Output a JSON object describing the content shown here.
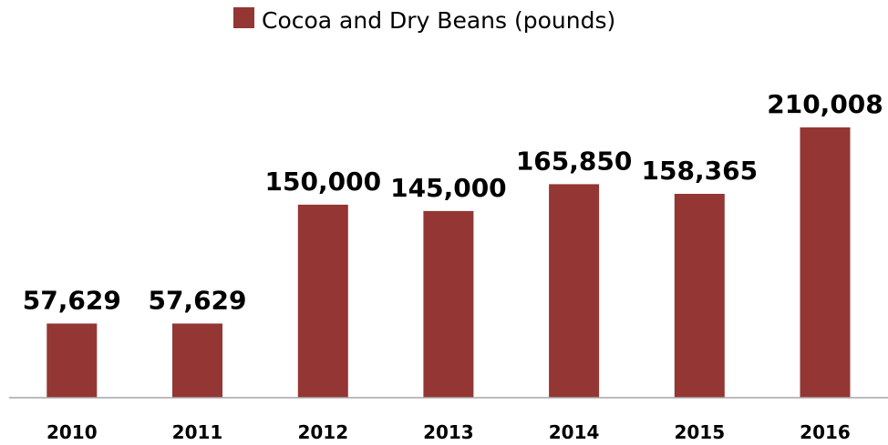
{
  "chart_data": {
    "type": "bar",
    "categories": [
      "2010",
      "2011",
      "2012",
      "2013",
      "2014",
      "2015",
      "2016"
    ],
    "series": [
      {
        "name": "Cocoa and Dry Beans (pounds)",
        "values": [
          57629,
          57629,
          150000,
          145000,
          165850,
          158365,
          210008
        ],
        "data_labels": [
          "57,629",
          "57,629",
          "150,000",
          "145,000",
          "165,850",
          "158,365",
          "210,008"
        ]
      }
    ],
    "title": "",
    "xlabel": "",
    "ylabel": "",
    "ylim": [
      0,
      240000
    ],
    "grid": false,
    "legend_position": "top-center",
    "colors": {
      "bar": "#943634",
      "axis": "#a6a6a6"
    }
  }
}
